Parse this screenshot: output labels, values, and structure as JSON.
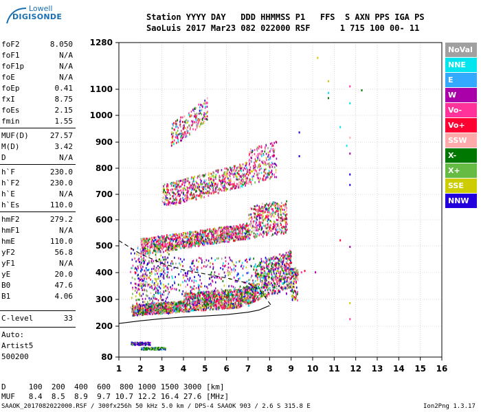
{
  "logo": {
    "line1": "Lowell",
    "line2": "DIGISONDE"
  },
  "header": {
    "line1": "Station YYYY DAY   DDD HHMMSS P1   FFS  S AXN PPS IGA PS",
    "line2": "SaoLuis 2017 Mar23 082 022000 RSF      1 715 100 00- 11"
  },
  "params": [
    {
      "name": "foF2",
      "value": "8.050"
    },
    {
      "name": "foF1",
      "value": "N/A"
    },
    {
      "name": "foF1p",
      "value": "N/A"
    },
    {
      "name": "foE",
      "value": "N/A"
    },
    {
      "name": "foEp",
      "value": "0.41"
    },
    {
      "name": "fxI",
      "value": "8.75"
    },
    {
      "name": "foEs",
      "value": "2.15"
    },
    {
      "name": "fmin",
      "value": "1.55"
    },
    {
      "name": "MUF(D)",
      "value": "27.57"
    },
    {
      "name": "M(D)",
      "value": "3.42"
    },
    {
      "name": "D",
      "value": "N/A"
    },
    {
      "name": "h`F",
      "value": "230.0"
    },
    {
      "name": "h`F2",
      "value": "230.0"
    },
    {
      "name": "h`E",
      "value": "N/A"
    },
    {
      "name": "h`Es",
      "value": "110.0"
    },
    {
      "name": "hmF2",
      "value": "279.2"
    },
    {
      "name": "hmF1",
      "value": "N/A"
    },
    {
      "name": "hmE",
      "value": "110.0"
    },
    {
      "name": "yF2",
      "value": "56.8"
    },
    {
      "name": "yF1",
      "value": "N/A"
    },
    {
      "name": "yE",
      "value": "20.0"
    },
    {
      "name": "B0",
      "value": "47.6"
    },
    {
      "name": "B1",
      "value": "4.06"
    }
  ],
  "clevel": {
    "name": "C-level",
    "value": "33"
  },
  "autoscale": {
    "line1": "Auto:",
    "line2": "Artist5",
    "line3": "500200"
  },
  "legend": [
    {
      "label": "NoVal",
      "color": "#a0a0a0"
    },
    {
      "label": "NNE",
      "color": "#00e5ee"
    },
    {
      "label": "E",
      "color": "#33aaff"
    },
    {
      "label": "W",
      "color": "#aa00aa"
    },
    {
      "label": "Vo-",
      "color": "#ff3399"
    },
    {
      "label": "Vo+",
      "color": "#ff0033"
    },
    {
      "label": "SSW",
      "color": "#ffaaaa"
    },
    {
      "label": "X-",
      "color": "#007700"
    },
    {
      "label": "X+",
      "color": "#66bb44"
    },
    {
      "label": "SSE",
      "color": "#cccc00"
    },
    {
      "label": "NNW",
      "color": "#2200dd"
    }
  ],
  "chart_data": {
    "type": "scatter",
    "x_ticks": [
      "1",
      "2",
      "3",
      "4",
      "5",
      "6",
      "7",
      "8",
      "9",
      "10",
      "11",
      "12",
      "13",
      "14",
      "15",
      "16"
    ],
    "y_ticks": [
      "80",
      "200",
      "300",
      "400",
      "500",
      "600",
      "700",
      "800",
      "900",
      "1000",
      "1100",
      "1280"
    ],
    "xlim": [
      1,
      16
    ],
    "ylim_labels": [
      80,
      1280
    ],
    "grid": "dotted",
    "profile_solid": [
      [
        1,
        210
      ],
      [
        2,
        220
      ],
      [
        3,
        228
      ],
      [
        4,
        234
      ],
      [
        5,
        238
      ],
      [
        6,
        243
      ],
      [
        7,
        252
      ],
      [
        7.5,
        260
      ],
      [
        8,
        277
      ]
    ],
    "profile_dashed": [
      [
        1,
        520
      ],
      [
        2,
        470
      ],
      [
        3,
        435
      ],
      [
        4,
        410
      ],
      [
        5,
        395
      ],
      [
        6,
        380
      ],
      [
        7,
        360
      ],
      [
        7.6,
        330
      ],
      [
        8.05,
        280
      ]
    ],
    "trace_bands": [
      {
        "name": "F1 trace",
        "fmin": 1.55,
        "fmax": 9.3,
        "hmin": 230,
        "hmax": 330
      },
      {
        "name": "F2 multihop",
        "fmin": 2,
        "fmax": 8.8,
        "hmin": 460,
        "hmax": 620
      },
      {
        "name": "3-hop",
        "fmin": 3,
        "fmax": 8.3,
        "hmin": 640,
        "hmax": 850
      },
      {
        "name": "4-hop",
        "fmin": 3.5,
        "fmax": 5,
        "hmin": 880,
        "hmax": 1050
      },
      {
        "name": "Es",
        "fmin": 1.55,
        "fmax": 3.2,
        "hmin": 110,
        "hmax": 140
      }
    ]
  },
  "footer": {
    "d_row": "D     100  200  400  600  800 1000 1500 3000 [km]",
    "muf_row": "MUF   8.4  8.5  8.9  9.7 10.7 12.2 16.4 27.6 [MHz]",
    "info": "SAAOK_2017082022000.RSF / 300fx256h 50 kHz 5.0 km / DPS-4 SAAOK 903 / 2.6 S 315.8 E",
    "version": "Ion2Png 1.3.17"
  }
}
